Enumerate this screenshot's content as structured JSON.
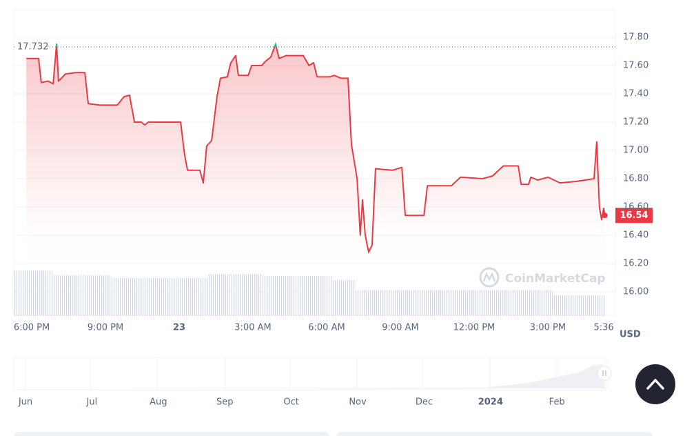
{
  "chart_data": {
    "type": "line",
    "series": [
      {
        "color": "#ea3943",
        "x": [
          17.78,
          18.28,
          18.39,
          18.67,
          18.87,
          19.01,
          19.09,
          19.37,
          19.79,
          20.16,
          20.3,
          20.78,
          21.48,
          21.76,
          21.98,
          22.18,
          22.46,
          22.6,
          22.74,
          24.06,
          24.22,
          24.34,
          24.84,
          24.98,
          25.12,
          25.32,
          25.54,
          25.68,
          25.96,
          26.1,
          26.3,
          26.41,
          26.81,
          26.95,
          27.36,
          27.51,
          27.73,
          27.92,
          28.07,
          28.35,
          29.05,
          29.28,
          29.47,
          29.61,
          30.12,
          30.31,
          30.59,
          30.87,
          31.01,
          31.24,
          31.37,
          31.46,
          31.57,
          31.71,
          31.85,
          31.99,
          32.69,
          33.06,
          33.2,
          33.96,
          34.1,
          35.08,
          35.45,
          36.34,
          36.76,
          37.19,
          37.8,
          37.91,
          38.22,
          38.31,
          38.59,
          39.01,
          39.49,
          40.13,
          40.88,
          40.99,
          41.1,
          41.19,
          41.27,
          41.32
        ],
        "values": [
          17.65,
          17.65,
          17.48,
          17.49,
          17.47,
          17.75,
          17.49,
          17.54,
          17.55,
          17.55,
          17.33,
          17.32,
          17.32,
          17.38,
          17.39,
          17.2,
          17.2,
          17.18,
          17.2,
          17.2,
          16.97,
          16.86,
          16.86,
          16.77,
          17.03,
          17.07,
          17.38,
          17.51,
          17.52,
          17.62,
          17.67,
          17.53,
          17.53,
          17.6,
          17.6,
          17.63,
          17.66,
          17.75,
          17.65,
          17.67,
          17.67,
          17.6,
          17.62,
          17.52,
          17.52,
          17.53,
          17.51,
          17.51,
          17.04,
          16.8,
          16.4,
          16.65,
          16.4,
          16.28,
          16.33,
          16.87,
          16.86,
          16.88,
          16.54,
          16.54,
          16.75,
          16.75,
          16.81,
          16.8,
          16.82,
          16.89,
          16.89,
          16.76,
          16.76,
          16.81,
          16.79,
          16.81,
          16.77,
          16.78,
          16.8,
          17.06,
          16.6,
          16.51,
          16.59,
          16.54
        ]
      }
    ],
    "high_color": "#16c784",
    "reference_line": 17.732,
    "xlim": [
      17.27,
      41.75
    ],
    "xticks": [
      {
        "value": 18,
        "label": "6:00 PM"
      },
      {
        "value": 21,
        "label": "9:00 PM"
      },
      {
        "value": 24,
        "label": "23"
      },
      {
        "value": 27,
        "label": "3:00 AM"
      },
      {
        "value": 30,
        "label": "6:00 AM"
      },
      {
        "value": 33,
        "label": "9:00 AM"
      },
      {
        "value": 36,
        "label": "12:00 PM"
      },
      {
        "value": 39,
        "label": "3:00 PM"
      },
      {
        "value": 41.6,
        "label": "5:36 PM"
      }
    ],
    "ylim": [
      15.834,
      17.995
    ],
    "yticks": [
      {
        "value": 16,
        "label": "16.00"
      },
      {
        "value": 16.2,
        "label": "16.20"
      },
      {
        "value": 16.4,
        "label": "16.40"
      },
      {
        "value": 16.6,
        "label": "16.60"
      },
      {
        "value": 16.8,
        "label": "16.80"
      },
      {
        "value": 17,
        "label": "17.00"
      },
      {
        "value": 17.2,
        "label": "17.20"
      },
      {
        "value": 17.4,
        "label": "17.40"
      },
      {
        "value": 17.6,
        "label": "17.60"
      },
      {
        "value": 17.8,
        "label": "17.80"
      }
    ],
    "grid": true,
    "y_unit": "USD",
    "watermark": "CoinMarketCap",
    "volume": {
      "bins": [
        17.27,
        18.84,
        21.22,
        25.15,
        27.4,
        30.2,
        31.19,
        39.19,
        41.32
      ],
      "values": [
        100,
        89,
        83,
        92,
        88,
        79,
        57,
        45
      ]
    }
  },
  "navigator": {
    "labels": [
      "Jun",
      "Jul",
      "Aug",
      "Sep",
      "Oct",
      "Nov",
      "Dec",
      "2024",
      "Feb"
    ]
  }
}
